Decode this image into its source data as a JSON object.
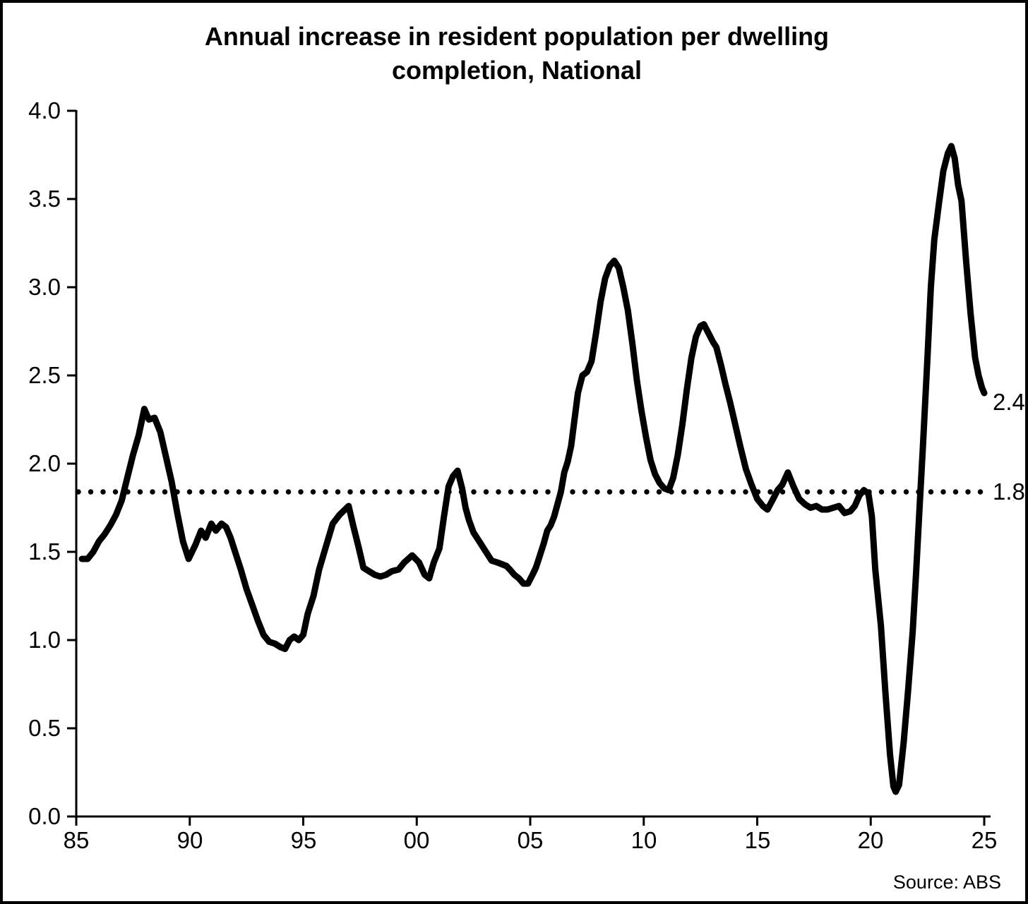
{
  "chart_data": {
    "type": "line",
    "title": "Annual increase in resident population per dwelling completion, National",
    "title_line1": "Annual increase in resident population per dwelling",
    "title_line2": "completion, National",
    "source_label": "Source: ABS",
    "line_color": "#000000",
    "background_color": "#ffffff",
    "grid": false,
    "legend": "none",
    "xlabel": "",
    "ylabel": "",
    "ylim": [
      0.0,
      4.0
    ],
    "xlim": [
      1985,
      2025
    ],
    "y_ticks": [
      "4.0",
      "3.5",
      "3.0",
      "2.5",
      "2.0",
      "1.5",
      "1.0",
      "0.5",
      "0.0"
    ],
    "y_tick_values": [
      4.0,
      3.5,
      3.0,
      2.5,
      2.0,
      1.5,
      1.0,
      0.5,
      0.0
    ],
    "x_ticks": [
      "85",
      "90",
      "95",
      "00",
      "05",
      "10",
      "15",
      "20",
      "25"
    ],
    "x_tick_years": [
      1985,
      1990,
      1995,
      2000,
      2005,
      2010,
      2015,
      2020,
      2025
    ],
    "reference_line": {
      "value": 1.84,
      "label": "1.8",
      "style": "dotted"
    },
    "end_label": {
      "value": 2.4,
      "label": "2.4"
    },
    "series": [
      {
        "name": "Annual increase in resident population per dwelling completion, National",
        "points": [
          [
            1985.25,
            1.46
          ],
          [
            1985.5,
            1.46
          ],
          [
            1985.75,
            1.5
          ],
          [
            1986.0,
            1.56
          ],
          [
            1986.25,
            1.6
          ],
          [
            1986.5,
            1.65
          ],
          [
            1986.75,
            1.71
          ],
          [
            1987.0,
            1.79
          ],
          [
            1987.25,
            1.92
          ],
          [
            1987.5,
            2.05
          ],
          [
            1987.75,
            2.16
          ],
          [
            1988.0,
            2.31
          ],
          [
            1988.2,
            2.25
          ],
          [
            1988.45,
            2.26
          ],
          [
            1988.7,
            2.18
          ],
          [
            1988.95,
            2.04
          ],
          [
            1989.2,
            1.9
          ],
          [
            1989.45,
            1.72
          ],
          [
            1989.7,
            1.56
          ],
          [
            1989.95,
            1.46
          ],
          [
            1990.25,
            1.54
          ],
          [
            1990.5,
            1.62
          ],
          [
            1990.7,
            1.58
          ],
          [
            1990.95,
            1.66
          ],
          [
            1991.15,
            1.62
          ],
          [
            1991.4,
            1.66
          ],
          [
            1991.6,
            1.64
          ],
          [
            1991.8,
            1.58
          ],
          [
            1992.0,
            1.5
          ],
          [
            1992.25,
            1.4
          ],
          [
            1992.5,
            1.29
          ],
          [
            1992.75,
            1.2
          ],
          [
            1993.0,
            1.11
          ],
          [
            1993.25,
            1.03
          ],
          [
            1993.5,
            0.99
          ],
          [
            1993.75,
            0.98
          ],
          [
            1994.0,
            0.96
          ],
          [
            1994.2,
            0.95
          ],
          [
            1994.4,
            1.0
          ],
          [
            1994.6,
            1.02
          ],
          [
            1994.8,
            1.0
          ],
          [
            1995.0,
            1.03
          ],
          [
            1995.2,
            1.15
          ],
          [
            1995.45,
            1.25
          ],
          [
            1995.7,
            1.4
          ],
          [
            1996.0,
            1.53
          ],
          [
            1996.3,
            1.66
          ],
          [
            1996.6,
            1.71
          ],
          [
            1997.0,
            1.76
          ],
          [
            1997.2,
            1.65
          ],
          [
            1997.45,
            1.52
          ],
          [
            1997.65,
            1.41
          ],
          [
            1997.9,
            1.39
          ],
          [
            1998.15,
            1.37
          ],
          [
            1998.4,
            1.36
          ],
          [
            1998.65,
            1.37
          ],
          [
            1998.9,
            1.39
          ],
          [
            1999.2,
            1.4
          ],
          [
            1999.45,
            1.44
          ],
          [
            1999.8,
            1.48
          ],
          [
            2000.1,
            1.44
          ],
          [
            2000.35,
            1.37
          ],
          [
            2000.55,
            1.35
          ],
          [
            2000.75,
            1.44
          ],
          [
            2001.0,
            1.52
          ],
          [
            2001.2,
            1.7
          ],
          [
            2001.4,
            1.87
          ],
          [
            2001.6,
            1.93
          ],
          [
            2001.8,
            1.96
          ],
          [
            2002.0,
            1.86
          ],
          [
            2002.15,
            1.75
          ],
          [
            2002.3,
            1.68
          ],
          [
            2002.5,
            1.61
          ],
          [
            2002.75,
            1.56
          ],
          [
            2002.95,
            1.52
          ],
          [
            2003.1,
            1.49
          ],
          [
            2003.3,
            1.45
          ],
          [
            2003.55,
            1.44
          ],
          [
            2003.75,
            1.43
          ],
          [
            2003.95,
            1.42
          ],
          [
            2004.1,
            1.4
          ],
          [
            2004.3,
            1.37
          ],
          [
            2004.5,
            1.35
          ],
          [
            2004.7,
            1.32
          ],
          [
            2004.9,
            1.32
          ],
          [
            2005.1,
            1.37
          ],
          [
            2005.25,
            1.41
          ],
          [
            2005.4,
            1.47
          ],
          [
            2005.6,
            1.55
          ],
          [
            2005.75,
            1.62
          ],
          [
            2005.9,
            1.65
          ],
          [
            2006.05,
            1.7
          ],
          [
            2006.2,
            1.77
          ],
          [
            2006.35,
            1.84
          ],
          [
            2006.5,
            1.95
          ],
          [
            2006.65,
            2.01
          ],
          [
            2006.8,
            2.1
          ],
          [
            2006.95,
            2.25
          ],
          [
            2007.1,
            2.4
          ],
          [
            2007.3,
            2.5
          ],
          [
            2007.5,
            2.52
          ],
          [
            2007.7,
            2.58
          ],
          [
            2007.9,
            2.74
          ],
          [
            2008.1,
            2.92
          ],
          [
            2008.3,
            3.05
          ],
          [
            2008.5,
            3.12
          ],
          [
            2008.7,
            3.15
          ],
          [
            2008.9,
            3.11
          ],
          [
            2009.1,
            3.0
          ],
          [
            2009.3,
            2.87
          ],
          [
            2009.5,
            2.68
          ],
          [
            2009.7,
            2.47
          ],
          [
            2009.9,
            2.3
          ],
          [
            2010.1,
            2.15
          ],
          [
            2010.3,
            2.02
          ],
          [
            2010.5,
            1.94
          ],
          [
            2010.7,
            1.89
          ],
          [
            2010.9,
            1.86
          ],
          [
            2011.1,
            1.85
          ],
          [
            2011.3,
            1.92
          ],
          [
            2011.5,
            2.05
          ],
          [
            2011.7,
            2.22
          ],
          [
            2011.9,
            2.42
          ],
          [
            2012.1,
            2.6
          ],
          [
            2012.3,
            2.72
          ],
          [
            2012.5,
            2.78
          ],
          [
            2012.65,
            2.79
          ],
          [
            2012.85,
            2.74
          ],
          [
            2013.05,
            2.69
          ],
          [
            2013.2,
            2.66
          ],
          [
            2013.4,
            2.56
          ],
          [
            2013.6,
            2.45
          ],
          [
            2013.8,
            2.35
          ],
          [
            2014.0,
            2.24
          ],
          [
            2014.25,
            2.1
          ],
          [
            2014.5,
            1.97
          ],
          [
            2014.75,
            1.88
          ],
          [
            2015.0,
            1.8
          ],
          [
            2015.25,
            1.76
          ],
          [
            2015.45,
            1.74
          ],
          [
            2015.7,
            1.8
          ],
          [
            2015.9,
            1.85
          ],
          [
            2016.1,
            1.88
          ],
          [
            2016.35,
            1.95
          ],
          [
            2016.6,
            1.87
          ],
          [
            2016.85,
            1.8
          ],
          [
            2017.1,
            1.77
          ],
          [
            2017.35,
            1.75
          ],
          [
            2017.6,
            1.76
          ],
          [
            2017.85,
            1.74
          ],
          [
            2018.1,
            1.74
          ],
          [
            2018.35,
            1.75
          ],
          [
            2018.6,
            1.76
          ],
          [
            2018.85,
            1.72
          ],
          [
            2019.1,
            1.73
          ],
          [
            2019.3,
            1.76
          ],
          [
            2019.5,
            1.82
          ],
          [
            2019.7,
            1.85
          ],
          [
            2019.9,
            1.83
          ],
          [
            2020.05,
            1.7
          ],
          [
            2020.2,
            1.4
          ],
          [
            2020.45,
            1.08
          ],
          [
            2020.65,
            0.7
          ],
          [
            2020.85,
            0.35
          ],
          [
            2021.0,
            0.17
          ],
          [
            2021.1,
            0.14
          ],
          [
            2021.25,
            0.18
          ],
          [
            2021.45,
            0.42
          ],
          [
            2021.65,
            0.72
          ],
          [
            2021.85,
            1.05
          ],
          [
            2022.0,
            1.38
          ],
          [
            2022.15,
            1.75
          ],
          [
            2022.3,
            2.1
          ],
          [
            2022.5,
            2.6
          ],
          [
            2022.65,
            3.0
          ],
          [
            2022.8,
            3.27
          ],
          [
            2023.0,
            3.47
          ],
          [
            2023.2,
            3.66
          ],
          [
            2023.4,
            3.76
          ],
          [
            2023.55,
            3.8
          ],
          [
            2023.7,
            3.73
          ],
          [
            2023.85,
            3.58
          ],
          [
            2024.0,
            3.49
          ],
          [
            2024.2,
            3.15
          ],
          [
            2024.4,
            2.85
          ],
          [
            2024.6,
            2.6
          ],
          [
            2024.75,
            2.5
          ],
          [
            2024.9,
            2.43
          ],
          [
            2025.0,
            2.4
          ]
        ]
      }
    ]
  }
}
